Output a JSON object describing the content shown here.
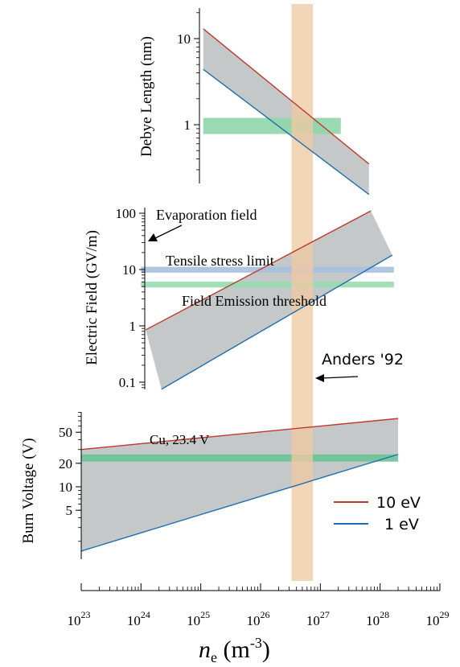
{
  "chart_data": [
    {
      "type": "area",
      "panel": "debye",
      "ylabel": "Debye Length (nm)",
      "yscale": "log",
      "ylim": [
        0.15,
        25
      ],
      "yticks": [
        {
          "v": 1,
          "label": "1"
        },
        {
          "v": 10,
          "label": "10"
        }
      ],
      "series": [
        {
          "name": "10 eV",
          "color": "#c0392b",
          "points": [
            [
              1.1e+25,
              13
            ],
            [
              6.5e+27,
              0.35
            ]
          ]
        },
        {
          "name": "1 eV",
          "color": "#1f6fb0",
          "points": [
            [
              1.1e+25,
              4.4
            ],
            [
              6.5e+27,
              0.155
            ]
          ]
        }
      ],
      "bands": [
        {
          "color": "#8fd6aa",
          "x": [
            1.1e+25,
            2.2e+27
          ],
          "y": [
            0.78,
            1.2
          ]
        }
      ]
    },
    {
      "type": "area",
      "panel": "field",
      "ylabel": "Electric Field (GV/m)",
      "yscale": "log",
      "ylim": [
        0.08,
        120
      ],
      "yticks": [
        {
          "v": 0.1,
          "label": "0.1"
        },
        {
          "v": 1,
          "label": "1"
        },
        {
          "v": 10,
          "label": "10"
        },
        {
          "v": 100,
          "label": "100"
        }
      ],
      "series": [
        {
          "name": "10 eV",
          "color": "#c0392b",
          "points": [
            [
              1.2e+24,
              0.85
            ],
            [
              7e+27,
              110
            ]
          ]
        },
        {
          "name": "1 eV",
          "color": "#1f6fb0",
          "points": [
            [
              2.2e+24,
              0.075
            ],
            [
              1.6e+28,
              18
            ]
          ]
        }
      ],
      "bands": [
        {
          "label": "Tensile stress limit",
          "color": "#a9bfdc",
          "x": [
            1e+24,
            1.7e+28
          ],
          "y": [
            8.8,
            11.2
          ]
        },
        {
          "label": "Field Emission threshold",
          "color": "#97dbb1",
          "x": [
            1e+24,
            1.7e+28
          ],
          "y": [
            4.8,
            6.1
          ]
        }
      ],
      "annotations": [
        "Evaporation field",
        "Tensile stress limit",
        "Field Emission threshold"
      ]
    },
    {
      "type": "area",
      "panel": "burn",
      "ylabel": "Burn Voltage (V)",
      "yscale": "log",
      "ylim": [
        1.2,
        90
      ],
      "yticks": [
        {
          "v": 5,
          "label": "5"
        },
        {
          "v": 10,
          "label": "10"
        },
        {
          "v": 20,
          "label": "20"
        },
        {
          "v": 50,
          "label": "50"
        }
      ],
      "series": [
        {
          "name": "10 eV",
          "color": "#c0392b",
          "points": [
            [
              1e+23,
              30
            ],
            [
              2e+28,
              75
            ]
          ]
        },
        {
          "name": "1 eV",
          "color": "#1f6fb0",
          "points": [
            [
              1e+23,
              1.5
            ],
            [
              2e+28,
              26
            ]
          ]
        }
      ],
      "bands": [
        {
          "label": "Cu, 23.4 V",
          "color": "#6cc497",
          "x": [
            1e+23,
            2e+28
          ],
          "y": [
            21,
            26
          ]
        }
      ],
      "annotations": [
        "Cu, 23.4 V"
      ]
    }
  ],
  "xaxis": {
    "scale": "log",
    "xlim": [
      1e+23,
      1e+29
    ],
    "major_ticks": [
      {
        "base": "10",
        "exp": "23",
        "v": 1e+23
      },
      {
        "base": "10",
        "exp": "24",
        "v": 1e+24
      },
      {
        "base": "10",
        "exp": "25",
        "v": 1e+25
      },
      {
        "base": "10",
        "exp": "26",
        "v": 1e+26
      },
      {
        "base": "10",
        "exp": "27",
        "v": 1e+27
      },
      {
        "base": "10",
        "exp": "28",
        "v": 1e+28
      },
      {
        "base": "10",
        "exp": "29",
        "v": 1e+29
      }
    ],
    "label": {
      "symbol": "n",
      "sub": "e",
      "units": "(m",
      "units_sup": "-3",
      "units_close": ")"
    }
  },
  "anders_band": {
    "label": "Anders '92",
    "color": "#f0c9a3",
    "x": [
      3.3e+26,
      7.5e+26
    ]
  },
  "legend": {
    "items": [
      {
        "label": "10 eV",
        "color": "#c0392b"
      },
      {
        "label": "1 eV",
        "color": "#1f6fb0"
      }
    ]
  },
  "fill_color": "#c4c8c9"
}
